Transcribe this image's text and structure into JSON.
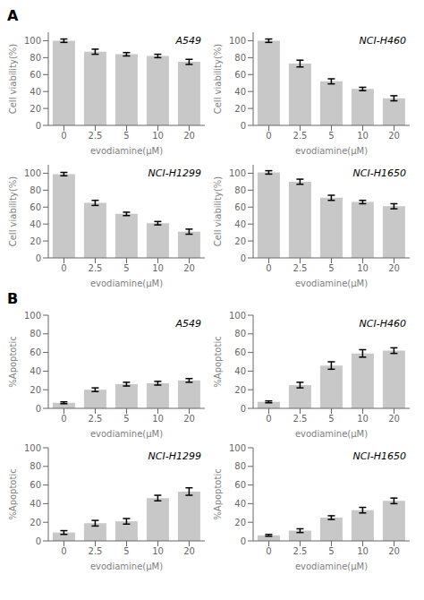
{
  "chart_data": [
    {
      "type": "bar",
      "title": "A549",
      "annotations": [
        "A"
      ],
      "xlabel": "evodiamine(μM)",
      "ylabel": "Cell viability(%)",
      "categories": [
        "0",
        "2.5",
        "5",
        "10",
        "20"
      ],
      "values": [
        100,
        87,
        84,
        82,
        75
      ],
      "errors": [
        2,
        3,
        2,
        2,
        3
      ],
      "color": "#c8c8c8",
      "ylim": [
        0,
        110
      ],
      "yticks": [
        0,
        20,
        40,
        60,
        80,
        100
      ],
      "grid": false
    },
    {
      "type": "bar",
      "title": "NCI-H460",
      "xlabel": "evodiamine(μM)",
      "ylabel": "Cell viability(%)",
      "categories": [
        "0",
        "2.5",
        "5",
        "10",
        "20"
      ],
      "values": [
        100,
        73,
        52,
        43,
        32
      ],
      "errors": [
        2,
        4,
        3,
        2,
        3
      ],
      "color": "#c8c8c8",
      "ylim": [
        0,
        110
      ],
      "yticks": [
        0,
        20,
        40,
        60,
        80,
        100
      ],
      "grid": false
    },
    {
      "type": "bar",
      "title": "NCI-H1299",
      "xlabel": "evodiamine(μM)",
      "ylabel": "Cell viability(%)",
      "categories": [
        "0",
        "2.5",
        "5",
        "10",
        "20"
      ],
      "values": [
        99,
        65,
        52,
        41,
        31
      ],
      "errors": [
        2,
        3,
        2,
        2,
        3
      ],
      "color": "#c8c8c8",
      "ylim": [
        0,
        110
      ],
      "yticks": [
        0,
        20,
        40,
        60,
        80,
        100
      ],
      "grid": false
    },
    {
      "type": "bar",
      "title": "NCI-H1650",
      "xlabel": "evodiamine(μM)",
      "ylabel": "Cell viability(%)",
      "categories": [
        "0",
        "2.5",
        "5",
        "10",
        "20"
      ],
      "values": [
        101,
        90,
        71,
        66,
        61
      ],
      "errors": [
        2,
        3,
        3,
        2,
        3
      ],
      "color": "#c8c8c8",
      "ylim": [
        0,
        110
      ],
      "yticks": [
        0,
        20,
        40,
        60,
        80,
        100
      ],
      "grid": false
    },
    {
      "type": "bar",
      "title": "A549",
      "annotations": [
        "B"
      ],
      "xlabel": "evodiamine(μM)",
      "ylabel": "%Apoptotic",
      "categories": [
        "0",
        "2.5",
        "5",
        "10",
        "20"
      ],
      "values": [
        6,
        20,
        26,
        27,
        30
      ],
      "errors": [
        1,
        2,
        2,
        2,
        2
      ],
      "color": "#c8c8c8",
      "ylim": [
        0,
        100
      ],
      "yticks": [
        0,
        20,
        40,
        60,
        80,
        100
      ],
      "grid": false
    },
    {
      "type": "bar",
      "title": "NCI-H460",
      "xlabel": "evodiamine(μM)",
      "ylabel": "%Apoptotic",
      "categories": [
        "0",
        "2.5",
        "5",
        "10",
        "20"
      ],
      "values": [
        7,
        25,
        46,
        59,
        62
      ],
      "errors": [
        1,
        3,
        4,
        4,
        3
      ],
      "color": "#c8c8c8",
      "ylim": [
        0,
        100
      ],
      "yticks": [
        0,
        20,
        40,
        60,
        80,
        100
      ],
      "grid": false
    },
    {
      "type": "bar",
      "title": "NCI-H1299",
      "xlabel": "evodiamine(μM)",
      "ylabel": "%Apoptotic",
      "categories": [
        "0",
        "2.5",
        "5",
        "10",
        "20"
      ],
      "values": [
        9,
        19,
        21,
        46,
        53
      ],
      "errors": [
        2,
        3,
        3,
        3,
        4
      ],
      "color": "#c8c8c8",
      "ylim": [
        0,
        100
      ],
      "yticks": [
        0,
        20,
        40,
        60,
        80,
        100
      ],
      "grid": false
    },
    {
      "type": "bar",
      "title": "NCI-H1650",
      "xlabel": "evodiamine(μM)",
      "ylabel": "%Apoptotic",
      "categories": [
        "0",
        "2.5",
        "5",
        "10",
        "20"
      ],
      "values": [
        6,
        11,
        25,
        33,
        43
      ],
      "errors": [
        1,
        2,
        2,
        3,
        3
      ],
      "color": "#c8c8c8",
      "ylim": [
        0,
        100
      ],
      "yticks": [
        0,
        20,
        40,
        60,
        80,
        100
      ],
      "grid": false
    }
  ]
}
